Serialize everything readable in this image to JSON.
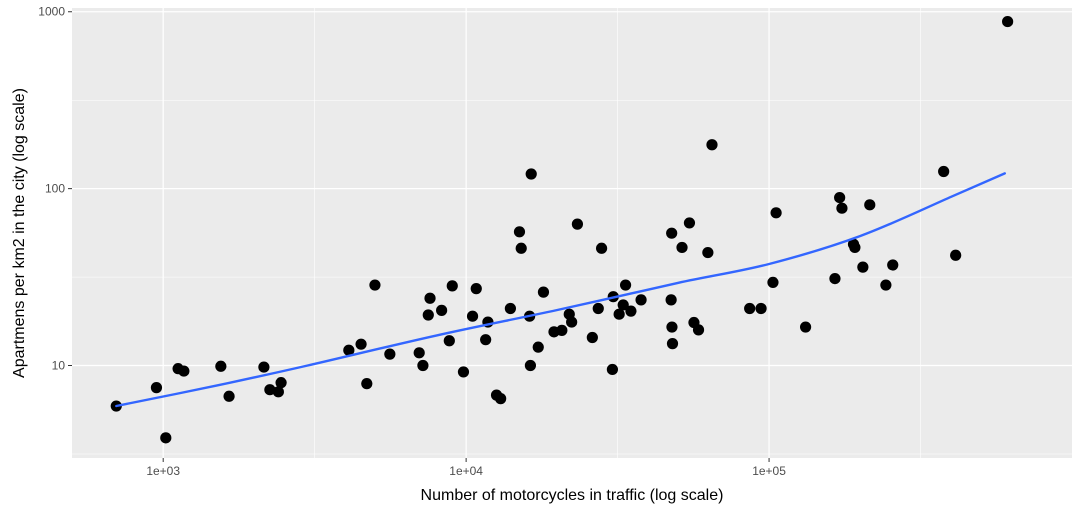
{
  "chart_data": {
    "type": "scatter",
    "title": "",
    "xlabel": "Number of motorcycles in traffic (log scale)",
    "ylabel": "Apartmens per km2 in the city (log scale)",
    "x_scale": "log10",
    "y_scale": "log10",
    "xlim": [
      500,
      1000000
    ],
    "ylim": [
      3,
      1050
    ],
    "x_ticks": [
      {
        "value": 1000,
        "label": "1e+03"
      },
      {
        "value": 10000,
        "label": "1e+04"
      },
      {
        "value": 100000,
        "label": "1e+05"
      }
    ],
    "x_minor_ticks": [
      3162,
      31623,
      316228
    ],
    "y_ticks": [
      {
        "value": 10,
        "label": "10"
      },
      {
        "value": 100,
        "label": "100"
      },
      {
        "value": 1000,
        "label": "1000"
      }
    ],
    "y_minor_ticks": [
      3.16,
      31.6,
      316
    ],
    "grid": true,
    "colors": {
      "panel_background": "#ebebeb",
      "grid": "#ffffff",
      "point": "#000000",
      "trend": "#3366ff"
    },
    "points": [
      {
        "x": 700,
        "y": 5.9
      },
      {
        "x": 950,
        "y": 7.5
      },
      {
        "x": 1020,
        "y": 3.9
      },
      {
        "x": 1120,
        "y": 9.6
      },
      {
        "x": 1170,
        "y": 9.3
      },
      {
        "x": 1550,
        "y": 9.9
      },
      {
        "x": 1650,
        "y": 6.7
      },
      {
        "x": 2150,
        "y": 9.8
      },
      {
        "x": 2250,
        "y": 7.3
      },
      {
        "x": 2400,
        "y": 7.1
      },
      {
        "x": 2450,
        "y": 8.0
      },
      {
        "x": 4100,
        "y": 12.2
      },
      {
        "x": 4500,
        "y": 13.2
      },
      {
        "x": 4700,
        "y": 7.9
      },
      {
        "x": 5000,
        "y": 28.5
      },
      {
        "x": 5600,
        "y": 11.6
      },
      {
        "x": 7000,
        "y": 11.8
      },
      {
        "x": 7200,
        "y": 10.0
      },
      {
        "x": 7500,
        "y": 19.3
      },
      {
        "x": 7600,
        "y": 24.0
      },
      {
        "x": 8300,
        "y": 20.5
      },
      {
        "x": 8800,
        "y": 13.8
      },
      {
        "x": 9000,
        "y": 28.2
      },
      {
        "x": 9800,
        "y": 9.2
      },
      {
        "x": 10500,
        "y": 19.0
      },
      {
        "x": 10800,
        "y": 27.2
      },
      {
        "x": 11600,
        "y": 14.0
      },
      {
        "x": 11800,
        "y": 17.6
      },
      {
        "x": 12600,
        "y": 6.8
      },
      {
        "x": 13000,
        "y": 6.5
      },
      {
        "x": 14000,
        "y": 21.0
      },
      {
        "x": 15000,
        "y": 57.0
      },
      {
        "x": 15200,
        "y": 46.0
      },
      {
        "x": 16200,
        "y": 19.0
      },
      {
        "x": 16300,
        "y": 10.0
      },
      {
        "x": 16400,
        "y": 121.0
      },
      {
        "x": 17300,
        "y": 12.7
      },
      {
        "x": 18000,
        "y": 26.0
      },
      {
        "x": 19500,
        "y": 15.5
      },
      {
        "x": 20700,
        "y": 15.8
      },
      {
        "x": 21900,
        "y": 19.5
      },
      {
        "x": 22300,
        "y": 17.6
      },
      {
        "x": 23300,
        "y": 63.0
      },
      {
        "x": 26100,
        "y": 14.4
      },
      {
        "x": 27300,
        "y": 21.0
      },
      {
        "x": 28000,
        "y": 46.0
      },
      {
        "x": 30400,
        "y": 9.5
      },
      {
        "x": 30600,
        "y": 24.5
      },
      {
        "x": 32000,
        "y": 19.5
      },
      {
        "x": 33000,
        "y": 22.0
      },
      {
        "x": 33600,
        "y": 28.5
      },
      {
        "x": 35000,
        "y": 20.3
      },
      {
        "x": 37800,
        "y": 23.5
      },
      {
        "x": 47700,
        "y": 56.0
      },
      {
        "x": 47500,
        "y": 23.5
      },
      {
        "x": 47800,
        "y": 16.5
      },
      {
        "x": 48000,
        "y": 13.3
      },
      {
        "x": 51600,
        "y": 46.5
      },
      {
        "x": 54600,
        "y": 64.0
      },
      {
        "x": 56500,
        "y": 17.5
      },
      {
        "x": 58500,
        "y": 15.9
      },
      {
        "x": 62800,
        "y": 43.5
      },
      {
        "x": 64800,
        "y": 177.0
      },
      {
        "x": 86300,
        "y": 21.0
      },
      {
        "x": 94100,
        "y": 21.0
      },
      {
        "x": 103000,
        "y": 29.5
      },
      {
        "x": 105500,
        "y": 73.0
      },
      {
        "x": 132000,
        "y": 16.5
      },
      {
        "x": 165000,
        "y": 31.0
      },
      {
        "x": 171000,
        "y": 89.0
      },
      {
        "x": 174000,
        "y": 77.5
      },
      {
        "x": 190000,
        "y": 48.5
      },
      {
        "x": 192000,
        "y": 46.5
      },
      {
        "x": 204000,
        "y": 36.0
      },
      {
        "x": 215000,
        "y": 81.0
      },
      {
        "x": 243000,
        "y": 28.5
      },
      {
        "x": 256000,
        "y": 37.0
      },
      {
        "x": 377000,
        "y": 125.0
      },
      {
        "x": 413000,
        "y": 42.0
      },
      {
        "x": 613000,
        "y": 880.0
      }
    ],
    "trend_line": {
      "method": "smooth",
      "x": [
        700,
        1500,
        3000,
        8000,
        20000,
        50000,
        100000,
        200000,
        400000,
        600000
      ],
      "y": [
        5.9,
        7.7,
        10.0,
        14.8,
        20.6,
        29.3,
        37.5,
        54.0,
        90.0,
        122.0
      ]
    }
  }
}
